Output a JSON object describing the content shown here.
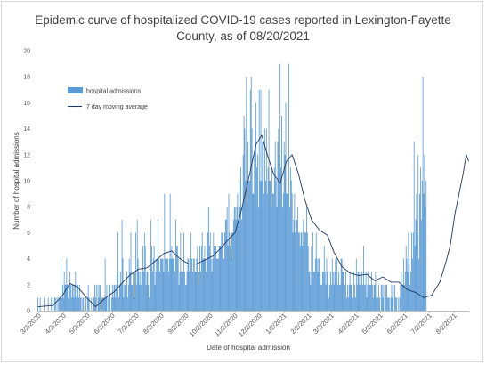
{
  "chart_data": {
    "type": "bar",
    "title_lines": [
      "Epidemic curve of hospitalized COVID-19 cases reported in Lexington-Fayette",
      "County, as of 08/20/2021"
    ],
    "xlabel": "Date of hospital admission",
    "ylabel": "Number of hospital admissions",
    "ylim": [
      0,
      20
    ],
    "y_ticks": [
      0,
      2,
      4,
      6,
      8,
      10,
      12,
      14,
      16,
      18,
      20
    ],
    "x_range": [
      "3/1/2020",
      "8/20/2021"
    ],
    "x_tick_labels": [
      "3/2/2020",
      "4/2/2020",
      "5/2/2020",
      "6/2/2020",
      "7/2/2020",
      "8/2/2020",
      "9/2/2020",
      "10/2/2020",
      "11/2/2020",
      "12/2/2020",
      "1/2/2021",
      "2/2/2021",
      "3/2/2021",
      "4/2/2021",
      "5/2/2021",
      "6/2/2021",
      "7/2/2021",
      "8/2/2021"
    ],
    "grid": false,
    "legend_position": "top-left",
    "colors": {
      "bars": "#5b9bd5",
      "line": "#1f3864"
    },
    "series": [
      {
        "name": "hospital admissions",
        "type": "bar",
        "x_start": "3/1/2020",
        "x_step": "1 day",
        "values": [
          1,
          0,
          0,
          1,
          0,
          0,
          0,
          0,
          1,
          0,
          0,
          0,
          0,
          1,
          0,
          0,
          0,
          1,
          0,
          1,
          0,
          1,
          1,
          0,
          1,
          0,
          1,
          1,
          1,
          4,
          1,
          2,
          1,
          3,
          2,
          2,
          4,
          2,
          1,
          2,
          3,
          2,
          1,
          2,
          2,
          1,
          2,
          3,
          1,
          2,
          2,
          1,
          2,
          1,
          1,
          0,
          1,
          1,
          0,
          0,
          1,
          0,
          1,
          2,
          1,
          0,
          0,
          1,
          0,
          0,
          1,
          2,
          1,
          2,
          0,
          2,
          1,
          2,
          2,
          0,
          1,
          1,
          1,
          1,
          4,
          1,
          2,
          0,
          1,
          2,
          2,
          0,
          1,
          2,
          1,
          2,
          2,
          1,
          2,
          3,
          6,
          1,
          2,
          3,
          2,
          7,
          4,
          1,
          2,
          2,
          2,
          3,
          1,
          2,
          4,
          3,
          6,
          2,
          2,
          3,
          1,
          3,
          6,
          2,
          7,
          4,
          3,
          2,
          3,
          2,
          3,
          5,
          3,
          6,
          5,
          2,
          3,
          3,
          2,
          1,
          4,
          7,
          5,
          3,
          4,
          5,
          2,
          3,
          4,
          4,
          7,
          4,
          3,
          4,
          4,
          4,
          4,
          3,
          9,
          4,
          4,
          4,
          4,
          3,
          4,
          9,
          4,
          5,
          4,
          4,
          4,
          3,
          7,
          5,
          5,
          4,
          2,
          3,
          6,
          3,
          3,
          3,
          6,
          3,
          2,
          2,
          3,
          4,
          4,
          3,
          4,
          6,
          4,
          3,
          4,
          4,
          3,
          3,
          4,
          5,
          2,
          3,
          5,
          3,
          5,
          6,
          4,
          4,
          5,
          4,
          3,
          8,
          6,
          8,
          5,
          6,
          4,
          3,
          4,
          6,
          5,
          5,
          5,
          4,
          4,
          4,
          5,
          5,
          5,
          6,
          6,
          4,
          4,
          6,
          7,
          7,
          8,
          5,
          9,
          6,
          5,
          4,
          6,
          6,
          7,
          8,
          8,
          7,
          8,
          9,
          7,
          10,
          8,
          11,
          7,
          8,
          12,
          15,
          14,
          10,
          18,
          8,
          13,
          10,
          10,
          17,
          8,
          14,
          9,
          9,
          12,
          14,
          16,
          11,
          12,
          8,
          17,
          10,
          17,
          10,
          13,
          13,
          9,
          14,
          10,
          14,
          9,
          11,
          10,
          10,
          10,
          8,
          11,
          9,
          9,
          11,
          13,
          10,
          8,
          13,
          14,
          12,
          19,
          11,
          15,
          8,
          9,
          13,
          12,
          16,
          9,
          9,
          9,
          11,
          8,
          11,
          10,
          9,
          6,
          7,
          9,
          6,
          7,
          7,
          8,
          6,
          6,
          5,
          6,
          6,
          5,
          7,
          5,
          6,
          6,
          8,
          6,
          5,
          3,
          3,
          2,
          5,
          3,
          6,
          3,
          3,
          4,
          6,
          4,
          3,
          4,
          4,
          3,
          2,
          2,
          3,
          3,
          5,
          3,
          2,
          4,
          3,
          2,
          1,
          2,
          3,
          2,
          4,
          3,
          2,
          3,
          4,
          3,
          4,
          2,
          3,
          2,
          2,
          4,
          4,
          3,
          3,
          2,
          2,
          3,
          1,
          2,
          1,
          2,
          3,
          2,
          2,
          1,
          1,
          3,
          2,
          1,
          4,
          2,
          3,
          3,
          2,
          3,
          2,
          3,
          2,
          5,
          2,
          2,
          3,
          1,
          2,
          3,
          2,
          2,
          2,
          3,
          2,
          1,
          2,
          2,
          3,
          1,
          1,
          1,
          2,
          1,
          0,
          2,
          2,
          1,
          2,
          0,
          1,
          2,
          2,
          1,
          1,
          1,
          0,
          1,
          2,
          1,
          2,
          0,
          2,
          1,
          1,
          0,
          1,
          0,
          1,
          2,
          3,
          2,
          2,
          4,
          2,
          3,
          5,
          4,
          3,
          6,
          4,
          2,
          3,
          6,
          4,
          6,
          13,
          5,
          7,
          9,
          6,
          12,
          4,
          9,
          11,
          7,
          10,
          18,
          9,
          12,
          8,
          10
        ],
        "peaks": [
          {
            "date": "11/22/2020",
            "value": 18
          },
          {
            "date": "12/14/2020",
            "value": 17
          },
          {
            "date": "1/8/2021",
            "value": 19
          },
          {
            "date": "8/14/2021",
            "value": 18
          }
        ]
      },
      {
        "name": "7 day moving average",
        "type": "line",
        "points": [
          [
            "3/1/2020",
            0.3
          ],
          [
            "3/20/2020",
            0.4
          ],
          [
            "4/1/2020",
            1.2
          ],
          [
            "4/10/2020",
            2.1
          ],
          [
            "4/20/2020",
            1.8
          ],
          [
            "5/1/2020",
            1.0
          ],
          [
            "5/12/2020",
            0.3
          ],
          [
            "5/25/2020",
            1.0
          ],
          [
            "6/5/2020",
            1.5
          ],
          [
            "6/15/2020",
            2.2
          ],
          [
            "6/25/2020",
            2.8
          ],
          [
            "7/5/2020",
            3.2
          ],
          [
            "7/15/2020",
            3.3
          ],
          [
            "7/25/2020",
            3.8
          ],
          [
            "8/5/2020",
            4.4
          ],
          [
            "8/15/2020",
            4.6
          ],
          [
            "8/25/2020",
            4.0
          ],
          [
            "9/5/2020",
            3.6
          ],
          [
            "9/15/2020",
            3.6
          ],
          [
            "9/25/2020",
            3.9
          ],
          [
            "10/5/2020",
            4.2
          ],
          [
            "10/15/2020",
            4.8
          ],
          [
            "10/25/2020",
            5.5
          ],
          [
            "11/2/2020",
            6.0
          ],
          [
            "11/10/2020",
            7.8
          ],
          [
            "11/20/2020",
            10.5
          ],
          [
            "11/28/2020",
            12.8
          ],
          [
            "12/5/2020",
            13.5
          ],
          [
            "12/12/2020",
            12.0
          ],
          [
            "12/20/2020",
            10.5
          ],
          [
            "12/28/2020",
            9.8
          ],
          [
            "1/5/2021",
            11.5
          ],
          [
            "1/12/2021",
            12.0
          ],
          [
            "1/20/2021",
            10.5
          ],
          [
            "1/28/2021",
            8.5
          ],
          [
            "2/5/2021",
            7.0
          ],
          [
            "2/15/2021",
            6.2
          ],
          [
            "2/25/2021",
            5.8
          ],
          [
            "3/5/2021",
            4.5
          ],
          [
            "3/15/2021",
            3.4
          ],
          [
            "3/25/2021",
            2.9
          ],
          [
            "4/5/2021",
            2.7
          ],
          [
            "4/15/2021",
            2.8
          ],
          [
            "4/25/2021",
            2.3
          ],
          [
            "5/5/2021",
            2.6
          ],
          [
            "5/15/2021",
            2.2
          ],
          [
            "5/25/2021",
            2.2
          ],
          [
            "6/5/2021",
            1.6
          ],
          [
            "6/15/2021",
            1.4
          ],
          [
            "6/25/2021",
            1.0
          ],
          [
            "7/5/2021",
            1.2
          ],
          [
            "7/15/2021",
            2.2
          ],
          [
            "7/22/2021",
            3.6
          ],
          [
            "7/28/2021",
            5.0
          ],
          [
            "8/3/2021",
            7.5
          ],
          [
            "8/8/2021",
            9.0
          ],
          [
            "8/13/2021",
            10.5
          ],
          [
            "8/17/2021",
            12.0
          ],
          [
            "8/20/2021",
            11.5
          ]
        ]
      }
    ]
  }
}
